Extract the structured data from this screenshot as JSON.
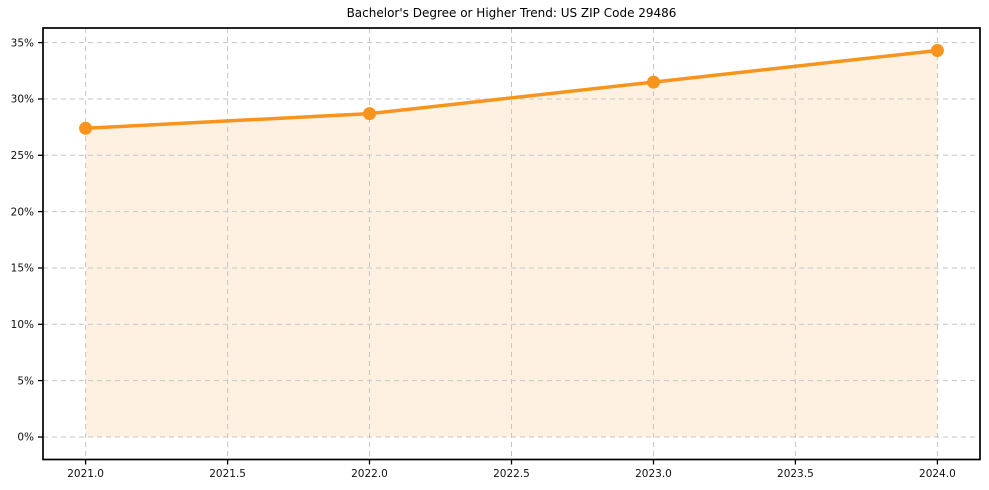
{
  "chart_data": {
    "type": "line",
    "title": "Bachelor's Degree or Higher Trend: US ZIP Code 29486",
    "x": [
      2021,
      2022,
      2023,
      2024
    ],
    "values": [
      27.4,
      28.7,
      31.5,
      34.3
    ],
    "xlabel": "",
    "ylabel": "",
    "x_ticks": [
      2021.0,
      2021.5,
      2022.0,
      2022.5,
      2023.0,
      2023.5,
      2024.0
    ],
    "x_tick_labels": [
      "2021.0",
      "2021.5",
      "2022.0",
      "2022.5",
      "2023.0",
      "2023.5",
      "2024.0"
    ],
    "y_ticks": [
      0,
      5,
      10,
      15,
      20,
      25,
      30,
      35
    ],
    "y_tick_labels": [
      "0%",
      "5%",
      "10%",
      "15%",
      "20%",
      "25%",
      "30%",
      "35%"
    ],
    "xlim": [
      2020.85,
      2024.15
    ],
    "ylim": [
      -2.0,
      36.3
    ],
    "grid": true,
    "grid_style": "dashed",
    "legend": false,
    "area_fill": true,
    "area_fill_baseline": 0,
    "marker": "circle",
    "colors": {
      "line": "#F7941E",
      "fill": "rgba(247,148,30,0.13)",
      "grid": "#c6c6c6",
      "axis": "#000000",
      "text": "#111111",
      "background": "#ffffff"
    }
  }
}
